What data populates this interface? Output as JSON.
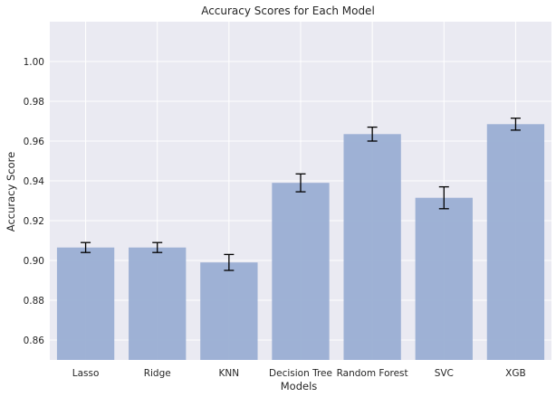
{
  "chart_data": {
    "type": "bar",
    "title": "Accuracy Scores for Each Model",
    "xlabel": "Models",
    "ylabel": "Accuracy Score",
    "categories": [
      "Lasso",
      "Ridge",
      "KNN",
      "Decision Tree",
      "Random Forest",
      "SVC",
      "XGB"
    ],
    "values": [
      0.9065,
      0.9065,
      0.899,
      0.939,
      0.9635,
      0.9315,
      0.9685
    ],
    "errors": [
      0.0025,
      0.0025,
      0.004,
      0.0045,
      0.0035,
      0.0055,
      0.003
    ],
    "ylim": [
      0.85,
      1.02
    ],
    "yticks": [
      0.86,
      0.88,
      0.9,
      0.92,
      0.94,
      0.96,
      0.98,
      1.0
    ],
    "ytick_labels": [
      "0.86",
      "0.88",
      "0.90",
      "0.92",
      "0.94",
      "0.96",
      "0.98",
      "1.00"
    ],
    "grid": true,
    "colors": {
      "background": "#eaeaf2",
      "grid": "#ffffff",
      "bar": "#9aaed3",
      "errorbar": "#000000"
    }
  }
}
